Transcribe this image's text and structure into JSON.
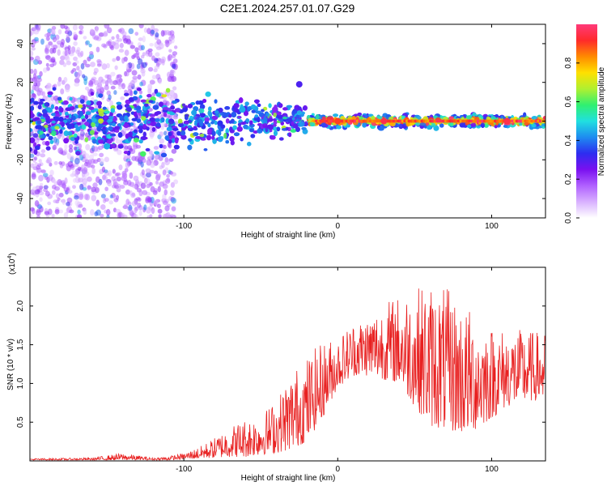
{
  "figure_title": "C2E1.2024.257.01.07.G29",
  "colors": {
    "snr_line": "#e82020",
    "axis": "#000000",
    "colormap": [
      "#ffffff",
      "#d8b0ff",
      "#b060ff",
      "#7a10f0",
      "#2d2df0",
      "#1e8cf0",
      "#20e0e0",
      "#30f070",
      "#b0f030",
      "#ffe000",
      "#ff8a00",
      "#ff2a2a",
      "#ff3a7a"
    ]
  },
  "chart_data": [
    {
      "type": "heatmap",
      "name": "spectrogram",
      "xlabel": "Height of straight line (km)",
      "ylabel": "Frequency (Hz)",
      "xlim": [
        -200,
        135
      ],
      "ylim": [
        -50,
        50
      ],
      "xticks": [
        -100,
        0,
        100
      ],
      "xtick_labels": [
        "-100",
        "0",
        "100"
      ],
      "yticks": [
        -40,
        -20,
        0,
        20,
        40
      ],
      "ytick_labels": [
        "-40",
        "-20",
        "0",
        "20",
        "40"
      ],
      "colorbar": {
        "label": "Normalized spectral amplitude",
        "range": [
          0,
          1
        ],
        "ticks": [
          0.0,
          0.2,
          0.4,
          0.6,
          0.8
        ],
        "tick_labels": [
          "0.0",
          "0.2",
          "0.4",
          "0.6",
          "0.8"
        ]
      },
      "description_points": [
        {
          "height_km": -150,
          "freq_hz": -13,
          "amp": 0.45
        },
        {
          "height_km": -62,
          "freq_hz": 6,
          "amp": 0.45
        },
        {
          "height_km": -25,
          "freq_hz": 19,
          "amp": 0.3
        },
        {
          "height_km": 0,
          "freq_hz": 0,
          "amp": 0.9
        },
        {
          "height_km": 30,
          "freq_hz": 0,
          "amp": 0.95
        },
        {
          "height_km": 110,
          "freq_hz": 0,
          "amp": 0.95
        }
      ]
    },
    {
      "type": "line",
      "name": "snr",
      "xlabel": "Height of straight line (km)",
      "ylabel": "SNR (10 * v/v)",
      "y_multiplier_label": "(x10",
      "y_multiplier_exp": "4",
      "y_multiplier_close": ")",
      "xlim": [
        -200,
        135
      ],
      "ylim": [
        0,
        2.5
      ],
      "xticks": [
        -100,
        0,
        100
      ],
      "xtick_labels": [
        "-100",
        "0",
        "100"
      ],
      "yticks": [
        0.5,
        1.0,
        1.5,
        2.0
      ],
      "ytick_labels": [
        "0.5",
        "1.0",
        "1.5",
        "2.0"
      ],
      "envelope": {
        "x": [
          -200,
          -160,
          -140,
          -120,
          -110,
          -100,
          -90,
          -80,
          -70,
          -60,
          -50,
          -40,
          -30,
          -20,
          -10,
          0,
          10,
          20,
          30,
          40,
          50,
          60,
          70,
          80,
          90,
          100,
          110,
          120,
          135
        ],
        "lo": [
          0.01,
          0.01,
          0.01,
          0.01,
          0.01,
          0.02,
          0.03,
          0.04,
          0.05,
          0.05,
          0.08,
          0.1,
          0.15,
          0.25,
          0.55,
          0.95,
          1.1,
          1.1,
          1.05,
          1.0,
          0.7,
          0.45,
          0.4,
          0.35,
          0.4,
          0.55,
          0.7,
          0.75,
          0.8
        ],
        "hi": [
          0.03,
          0.04,
          0.1,
          0.04,
          0.06,
          0.1,
          0.18,
          0.3,
          0.45,
          0.55,
          0.6,
          0.8,
          1.15,
          1.35,
          1.55,
          1.6,
          1.8,
          1.9,
          2.05,
          2.15,
          2.25,
          2.3,
          2.25,
          2.05,
          1.9,
          1.75,
          1.7,
          1.7,
          1.65
        ]
      }
    }
  ]
}
